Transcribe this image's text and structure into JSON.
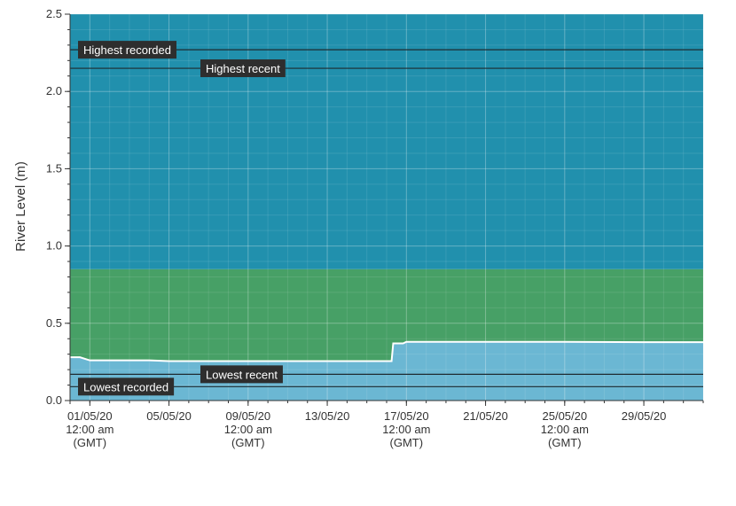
{
  "chart_data": {
    "type": "area",
    "title": "",
    "xlabel": "",
    "ylabel": "River Level (m)",
    "ylim": [
      0,
      2.5
    ],
    "xlim": [
      "30/04/20",
      "01/06/20"
    ],
    "grid": true,
    "y_ticks": [
      "0.0",
      "0.5",
      "1.0",
      "1.5",
      "2.0",
      "2.5"
    ],
    "x_ticks": [
      {
        "date": "01/05/20",
        "lines": [
          "01/05/20",
          "12:00 am",
          "(GMT)"
        ]
      },
      {
        "date": "05/05/20",
        "lines": [
          "05/05/20"
        ]
      },
      {
        "date": "09/05/20",
        "lines": [
          "09/05/20",
          "12:00 am",
          "(GMT)"
        ]
      },
      {
        "date": "13/05/20",
        "lines": [
          "13/05/20"
        ]
      },
      {
        "date": "17/05/20",
        "lines": [
          "17/05/20",
          "12:00 am",
          "(GMT)"
        ]
      },
      {
        "date": "21/05/20",
        "lines": [
          "21/05/20"
        ]
      },
      {
        "date": "25/05/20",
        "lines": [
          "25/05/20",
          "12:00 am",
          "(GMT)"
        ]
      },
      {
        "date": "29/05/20",
        "lines": [
          "29/05/20"
        ]
      }
    ],
    "bands": [
      {
        "from": 0.0,
        "to": 0.24,
        "color": "#4e98c5"
      },
      {
        "from": 0.24,
        "to": 0.85,
        "color": "#47a066"
      },
      {
        "from": 0.85,
        "to": 2.5,
        "color": "#2190ad"
      }
    ],
    "reference_lines": [
      {
        "label": "Highest recorded",
        "value": 2.27
      },
      {
        "label": "Highest recent",
        "value": 2.15
      },
      {
        "label": "Lowest recent",
        "value": 0.17
      },
      {
        "label": "Lowest recorded",
        "value": 0.09
      }
    ],
    "series": [
      {
        "x": [
          "30/04/20 00:00",
          "30/04/20 12:00",
          "01/05/20 00:00",
          "03/05/20 00:00",
          "04/05/20 00:00",
          "05/05/20 00:00",
          "07/05/20 00:00",
          "10/05/20 00:00",
          "13/05/20 00:00",
          "15/05/20 00:00",
          "16/05/20 06:00",
          "16/05/20 08:00",
          "16/05/20 20:00",
          "17/05/20 00:00",
          "21/05/20 00:00",
          "25/05/20 00:00",
          "29/05/20 00:00",
          "01/06/20 00:00"
        ],
        "values": [
          0.28,
          0.28,
          0.26,
          0.26,
          0.26,
          0.255,
          0.255,
          0.255,
          0.255,
          0.255,
          0.255,
          0.37,
          0.37,
          0.38,
          0.38,
          0.38,
          0.378,
          0.378
        ],
        "color": "#ffffff",
        "fill": "#6bb7d3"
      }
    ]
  }
}
